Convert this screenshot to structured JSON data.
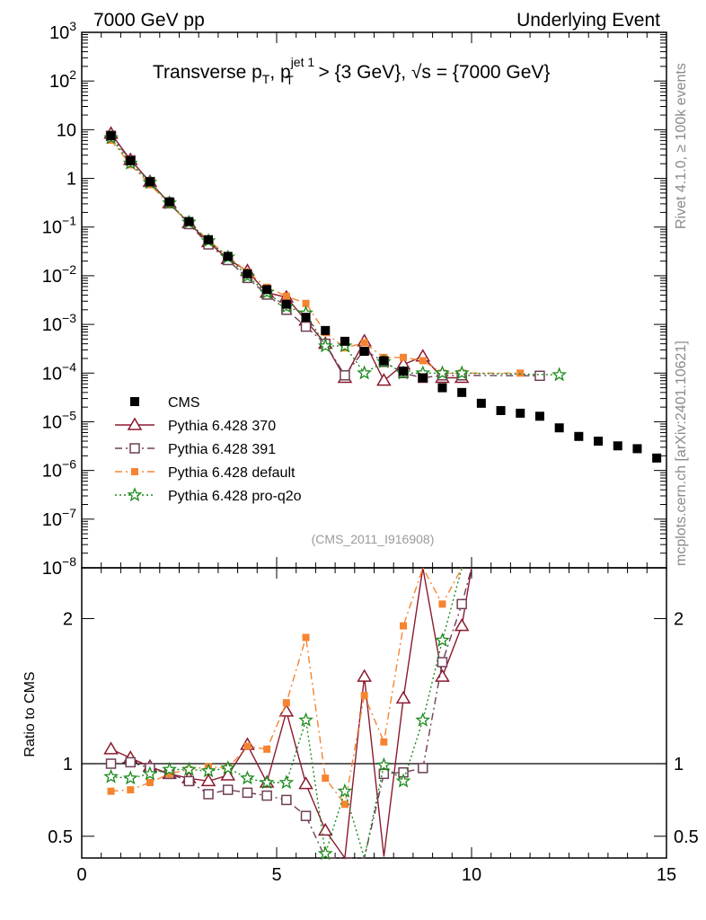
{
  "header": {
    "left": "7000 GeV pp",
    "right": "Underlying Event"
  },
  "side_labels": {
    "rivet": "Rivet 4.1.0, ≥ 100k events",
    "mcplots": "mcplots.cern.ch [arXiv:2401.10621]"
  },
  "title": {
    "main": "Transverse p",
    "sub_T1": "T",
    "mid": ", p",
    "sup_jet": "jet 1",
    "sub_T2": "T",
    "tail": " > {3 GeV}, √s = {7000 GeV}"
  },
  "watermark": "(CMS_2011_I916908)",
  "colors": {
    "CMS": "#000000",
    "Pythia 6.428 370": "#8b1a2e",
    "Pythia 6.428 391": "#6e3f55",
    "Pythia 6.428 default": "#f58431",
    "Pythia 6.428 pro-q2o": "#1a8a1a"
  },
  "chart_data": [
    {
      "type": "scatter",
      "panel": "main",
      "title": "Transverse pT, pT jet1 > {3 GeV}, sqrt(s) = {7000 GeV}",
      "yscale": "log",
      "xlim": [
        0,
        15
      ],
      "ylim": [
        1e-08,
        1000
      ],
      "ylabel": "",
      "xlabel": "",
      "y_tick_labels": [
        "10^-8",
        "10^-7",
        "10^-6",
        "10^-5",
        "10^-4",
        "10^-3",
        "10^-2",
        "10^-1",
        "1",
        "10",
        "10^2",
        "10^3"
      ],
      "legend_position": "bottom-left",
      "series": [
        {
          "name": "CMS",
          "style": "black-square",
          "x": [
            0.75,
            1.25,
            1.75,
            2.25,
            2.75,
            3.25,
            3.75,
            4.25,
            4.75,
            5.25,
            5.75,
            6.25,
            6.75,
            7.25,
            7.75,
            8.25,
            8.75,
            9.25,
            9.75,
            10.25,
            10.75,
            11.25,
            11.75,
            12.25,
            12.75,
            13.25,
            13.75,
            14.25,
            14.75
          ],
          "values": [
            7.5,
            2.3,
            0.85,
            0.33,
            0.13,
            0.055,
            0.025,
            0.011,
            0.0052,
            0.0026,
            0.0014,
            0.00075,
            0.00045,
            0.00028,
            0.00018,
            0.00011,
            8e-05,
            5e-05,
            4e-05,
            2.4e-05,
            1.7e-05,
            1.5e-05,
            1.3e-05,
            7.5e-06,
            5e-06,
            4e-06,
            3.2e-06,
            2.8e-06,
            1.8e-06
          ]
        },
        {
          "name": "Pythia 6.428 370",
          "style": "open-triangle solid",
          "x": [
            0.75,
            1.25,
            1.75,
            2.25,
            2.75,
            3.25,
            3.75,
            4.25,
            4.75,
            5.25,
            5.75,
            6.25,
            6.75,
            7.25,
            7.75,
            8.25,
            8.75,
            9.25,
            9.75
          ],
          "values": [
            8.3,
            2.4,
            0.85,
            0.31,
            0.12,
            0.049,
            0.022,
            0.0125,
            0.0045,
            0.0036,
            0.0012,
            0.0004,
            8e-05,
            0.00045,
            7e-05,
            0.00015,
            0.00022,
            8e-05,
            8e-05
          ]
        },
        {
          "name": "Pythia 6.428 391",
          "style": "open-square dash-dot",
          "x": [
            0.75,
            1.25,
            1.75,
            2.25,
            2.75,
            3.25,
            3.75,
            4.25,
            4.75,
            5.25,
            5.75,
            6.25,
            6.75,
            7.25,
            7.75,
            8.25,
            8.75,
            9.25,
            9.75,
            11.75
          ],
          "values": [
            7.5,
            2.35,
            0.84,
            0.31,
            0.115,
            0.044,
            0.021,
            0.009,
            0.0041,
            0.002,
            0.0009,
            0.0004,
            9e-05,
            0.0003,
            0.00017,
            0.0001,
            8e-05,
            9e-05,
            9e-05,
            8.8e-05
          ]
        },
        {
          "name": "Pythia 6.428 default",
          "style": "filled-square dash-dot",
          "x": [
            0.75,
            1.25,
            1.75,
            2.25,
            2.75,
            3.25,
            3.75,
            4.25,
            4.75,
            5.25,
            5.75,
            6.25,
            6.75,
            7.25,
            7.75,
            8.25,
            8.75,
            9.25,
            9.75,
            11.25
          ],
          "values": [
            6.1,
            1.9,
            0.74,
            0.3,
            0.124,
            0.054,
            0.025,
            0.012,
            0.0058,
            0.0038,
            0.0027,
            0.00068,
            0.00033,
            0.00042,
            0.00021,
            0.00021,
            0.00018,
            0.0001,
            0.0001,
            0.0001
          ]
        },
        {
          "name": "Pythia 6.428 pro-q2o",
          "style": "star dotted",
          "x": [
            0.75,
            1.25,
            1.75,
            2.25,
            2.75,
            3.25,
            3.75,
            4.25,
            4.75,
            5.25,
            5.75,
            6.25,
            6.75,
            7.25,
            7.75,
            8.25,
            8.75,
            9.25,
            9.75,
            12.25
          ],
          "values": [
            6.8,
            2.05,
            0.82,
            0.31,
            0.125,
            0.052,
            0.024,
            0.0098,
            0.0045,
            0.0023,
            0.0017,
            0.00036,
            0.00036,
            0.0001,
            0.00017,
            0.0001,
            0.0001,
            0.0001,
            0.0001,
            9.2e-05
          ]
        }
      ]
    },
    {
      "type": "scatter",
      "panel": "ratio",
      "ylabel": "Ratio to CMS",
      "xlabel": "",
      "xlim": [
        0,
        15
      ],
      "ylim": [
        0.35,
        2.35
      ],
      "x_tick_labels": [
        "0",
        "5",
        "10",
        "15"
      ],
      "y_tick_labels": [
        "0.5",
        "1",
        "2"
      ],
      "reference_line": 1,
      "series": [
        {
          "name": "Pythia 6.428 370",
          "x": [
            0.75,
            1.25,
            1.75,
            2.25,
            2.75,
            3.25,
            3.75,
            4.25,
            4.75,
            5.25,
            5.75,
            6.25,
            6.75,
            7.25,
            7.75,
            8.25,
            8.75,
            9.25,
            9.75,
            10.0
          ],
          "values": [
            1.1,
            1.04,
            0.98,
            0.93,
            0.9,
            0.88,
            0.92,
            1.13,
            0.87,
            1.36,
            0.86,
            0.54,
            0.3,
            1.6,
            0.36,
            1.45,
            2.35,
            1.6,
            1.95,
            2.35
          ]
        },
        {
          "name": "Pythia 6.428 391",
          "x": [
            0.75,
            1.25,
            1.75,
            2.25,
            2.75,
            3.25,
            3.75,
            4.25,
            4.75,
            5.25,
            5.75,
            6.25,
            6.75,
            7.25,
            7.75,
            8.25,
            8.75,
            9.25,
            9.75,
            10.0
          ],
          "values": [
            1.0,
            1.01,
            0.97,
            0.93,
            0.88,
            0.79,
            0.82,
            0.8,
            0.78,
            0.75,
            0.64,
            0.3,
            0.3,
            0.3,
            0.93,
            0.94,
            0.97,
            1.7,
            2.1,
            2.35
          ]
        },
        {
          "name": "Pythia 6.428 default",
          "x": [
            0.75,
            1.25,
            1.75,
            2.25,
            2.75,
            3.25,
            3.75,
            4.25,
            4.75,
            5.25,
            5.75,
            6.25,
            6.75,
            7.25,
            7.75,
            8.25,
            8.75,
            9.25,
            9.75
          ],
          "values": [
            0.81,
            0.82,
            0.87,
            0.93,
            0.96,
            0.98,
            0.97,
            1.12,
            1.1,
            1.42,
            1.87,
            0.9,
            0.72,
            1.47,
            1.15,
            1.95,
            2.35,
            2.1,
            2.35
          ]
        },
        {
          "name": "Pythia 6.428 pro-q2o",
          "x": [
            0.75,
            1.25,
            1.75,
            2.25,
            2.75,
            3.25,
            3.75,
            4.25,
            4.75,
            5.25,
            5.75,
            6.25,
            6.75,
            7.25,
            7.75,
            8.25,
            8.75,
            9.25,
            9.75
          ],
          "values": [
            0.91,
            0.9,
            0.93,
            0.96,
            0.96,
            0.95,
            0.97,
            0.9,
            0.87,
            0.87,
            1.3,
            0.38,
            0.81,
            0.3,
            0.99,
            0.88,
            1.3,
            1.85,
            2.35
          ]
        }
      ]
    }
  ]
}
